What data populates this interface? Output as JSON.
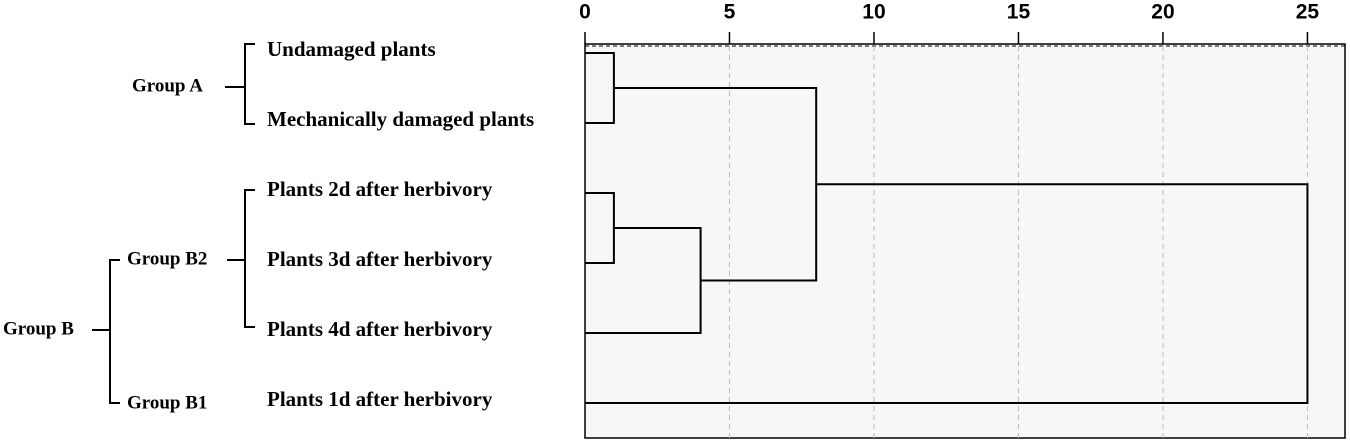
{
  "chart_data": {
    "type": "dendrogram",
    "leaves": [
      "Undamaged plants",
      "Mechanically damaged plants",
      "Plants 2d after herbivory",
      "Plants 3d after herbivory",
      "Plants 4d after herbivory",
      "Plants 1d after herbivory"
    ],
    "merges": [
      {
        "left": 0,
        "right": 1,
        "height": 1
      },
      {
        "left": 2,
        "right": 3,
        "height": 1
      },
      {
        "left": 7,
        "right": 4,
        "height": 4
      },
      {
        "left": 6,
        "right": 8,
        "height": 8
      },
      {
        "left": 9,
        "right": 5,
        "height": 25
      }
    ],
    "groups": [
      "Group A",
      "Group B2",
      "Group B",
      "Group B1"
    ],
    "xlim": [
      0,
      26.3
    ],
    "xticks": [
      0,
      5,
      10,
      15,
      20,
      25
    ],
    "grid": true
  }
}
